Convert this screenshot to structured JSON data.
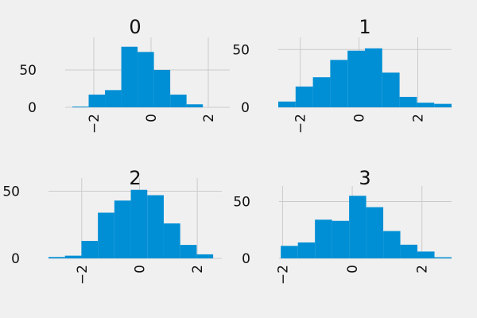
{
  "figure": {
    "background": "#f0f0f0",
    "bar_color": "#008fd5",
    "grid_color": "#cbcbcb"
  },
  "chart_data": [
    {
      "type": "bar",
      "title": "0",
      "bins": [
        {
          "x0": -2.75,
          "x1": -2.18,
          "value": 1
        },
        {
          "x0": -2.18,
          "x1": -1.61,
          "value": 17
        },
        {
          "x0": -1.61,
          "x1": -1.04,
          "value": 23
        },
        {
          "x0": -1.04,
          "x1": -0.47,
          "value": 81
        },
        {
          "x0": -0.47,
          "x1": 0.1,
          "value": 74
        },
        {
          "x0": 0.1,
          "x1": 0.67,
          "value": 50
        },
        {
          "x0": 0.67,
          "x1": 1.24,
          "value": 17
        },
        {
          "x0": 1.24,
          "x1": 1.81,
          "value": 4
        }
      ],
      "xlim": [
        -3.0,
        2.75
      ],
      "ylim": [
        0,
        85
      ],
      "xticks": [
        {
          "value": -2,
          "label": "−2"
        },
        {
          "value": 0,
          "label": "0"
        },
        {
          "value": 2,
          "label": "2"
        }
      ],
      "yticks": [
        {
          "value": 0,
          "label": "0"
        },
        {
          "value": 50,
          "label": "50"
        }
      ],
      "grid": true
    },
    {
      "type": "bar",
      "title": "1",
      "bins": [
        {
          "x0": -2.75,
          "x1": -2.16,
          "value": 5
        },
        {
          "x0": -2.16,
          "x1": -1.57,
          "value": 18
        },
        {
          "x0": -1.57,
          "x1": -0.98,
          "value": 26
        },
        {
          "x0": -0.98,
          "x1": -0.39,
          "value": 41
        },
        {
          "x0": -0.39,
          "x1": 0.2,
          "value": 49
        },
        {
          "x0": 0.2,
          "x1": 0.79,
          "value": 51
        },
        {
          "x0": 0.79,
          "x1": 1.38,
          "value": 30
        },
        {
          "x0": 1.38,
          "x1": 1.97,
          "value": 9
        },
        {
          "x0": 1.97,
          "x1": 2.56,
          "value": 4
        },
        {
          "x0": 2.56,
          "x1": 3.15,
          "value": 3
        }
      ],
      "xlim": [
        -2.75,
        3.15
      ],
      "ylim": [
        0,
        55
      ],
      "xticks": [
        {
          "value": -2,
          "label": "−2"
        },
        {
          "value": 0,
          "label": "0"
        },
        {
          "value": 2,
          "label": "2"
        }
      ],
      "yticks": [
        {
          "value": 0,
          "label": "0"
        },
        {
          "value": 50,
          "label": "50"
        }
      ],
      "grid": true
    },
    {
      "type": "bar",
      "title": "2",
      "bins": [
        {
          "x0": -3.15,
          "x1": -2.58,
          "value": 1
        },
        {
          "x0": -2.58,
          "x1": -2.01,
          "value": 2
        },
        {
          "x0": -2.01,
          "x1": -1.44,
          "value": 13
        },
        {
          "x0": -1.44,
          "x1": -0.87,
          "value": 34
        },
        {
          "x0": -0.87,
          "x1": -0.3,
          "value": 43
        },
        {
          "x0": -0.3,
          "x1": 0.27,
          "value": 51
        },
        {
          "x0": 0.27,
          "x1": 0.84,
          "value": 47
        },
        {
          "x0": 0.84,
          "x1": 1.41,
          "value": 26
        },
        {
          "x0": 1.41,
          "x1": 1.98,
          "value": 10
        },
        {
          "x0": 1.98,
          "x1": 2.55,
          "value": 3
        }
      ],
      "xlim": [
        -3.15,
        2.85
      ],
      "ylim": [
        0,
        55
      ],
      "xticks": [
        {
          "value": -2,
          "label": "−2"
        },
        {
          "value": 0,
          "label": "0"
        },
        {
          "value": 2,
          "label": "2"
        }
      ],
      "yticks": [
        {
          "value": 0,
          "label": "0"
        },
        {
          "value": 50,
          "label": "50"
        }
      ],
      "grid": true
    },
    {
      "type": "bar",
      "title": "3",
      "bins": [
        {
          "x0": -2.05,
          "x1": -1.56,
          "value": 11
        },
        {
          "x0": -1.56,
          "x1": -1.07,
          "value": 14
        },
        {
          "x0": -1.07,
          "x1": -0.58,
          "value": 34
        },
        {
          "x0": -0.58,
          "x1": -0.09,
          "value": 33
        },
        {
          "x0": -0.09,
          "x1": 0.4,
          "value": 55
        },
        {
          "x0": 0.4,
          "x1": 0.89,
          "value": 45
        },
        {
          "x0": 0.89,
          "x1": 1.38,
          "value": 24
        },
        {
          "x0": 1.38,
          "x1": 1.87,
          "value": 12
        },
        {
          "x0": 1.87,
          "x1": 2.36,
          "value": 6
        },
        {
          "x0": 2.36,
          "x1": 2.85,
          "value": 1
        }
      ],
      "xlim": [
        -2.1,
        2.85
      ],
      "ylim": [
        0,
        58
      ],
      "xticks": [
        {
          "value": -2,
          "label": "−2"
        },
        {
          "value": 0,
          "label": "0"
        },
        {
          "value": 2,
          "label": "2"
        }
      ],
      "yticks": [
        {
          "value": 0,
          "label": "0"
        },
        {
          "value": 50,
          "label": "50"
        }
      ],
      "grid": true
    }
  ]
}
